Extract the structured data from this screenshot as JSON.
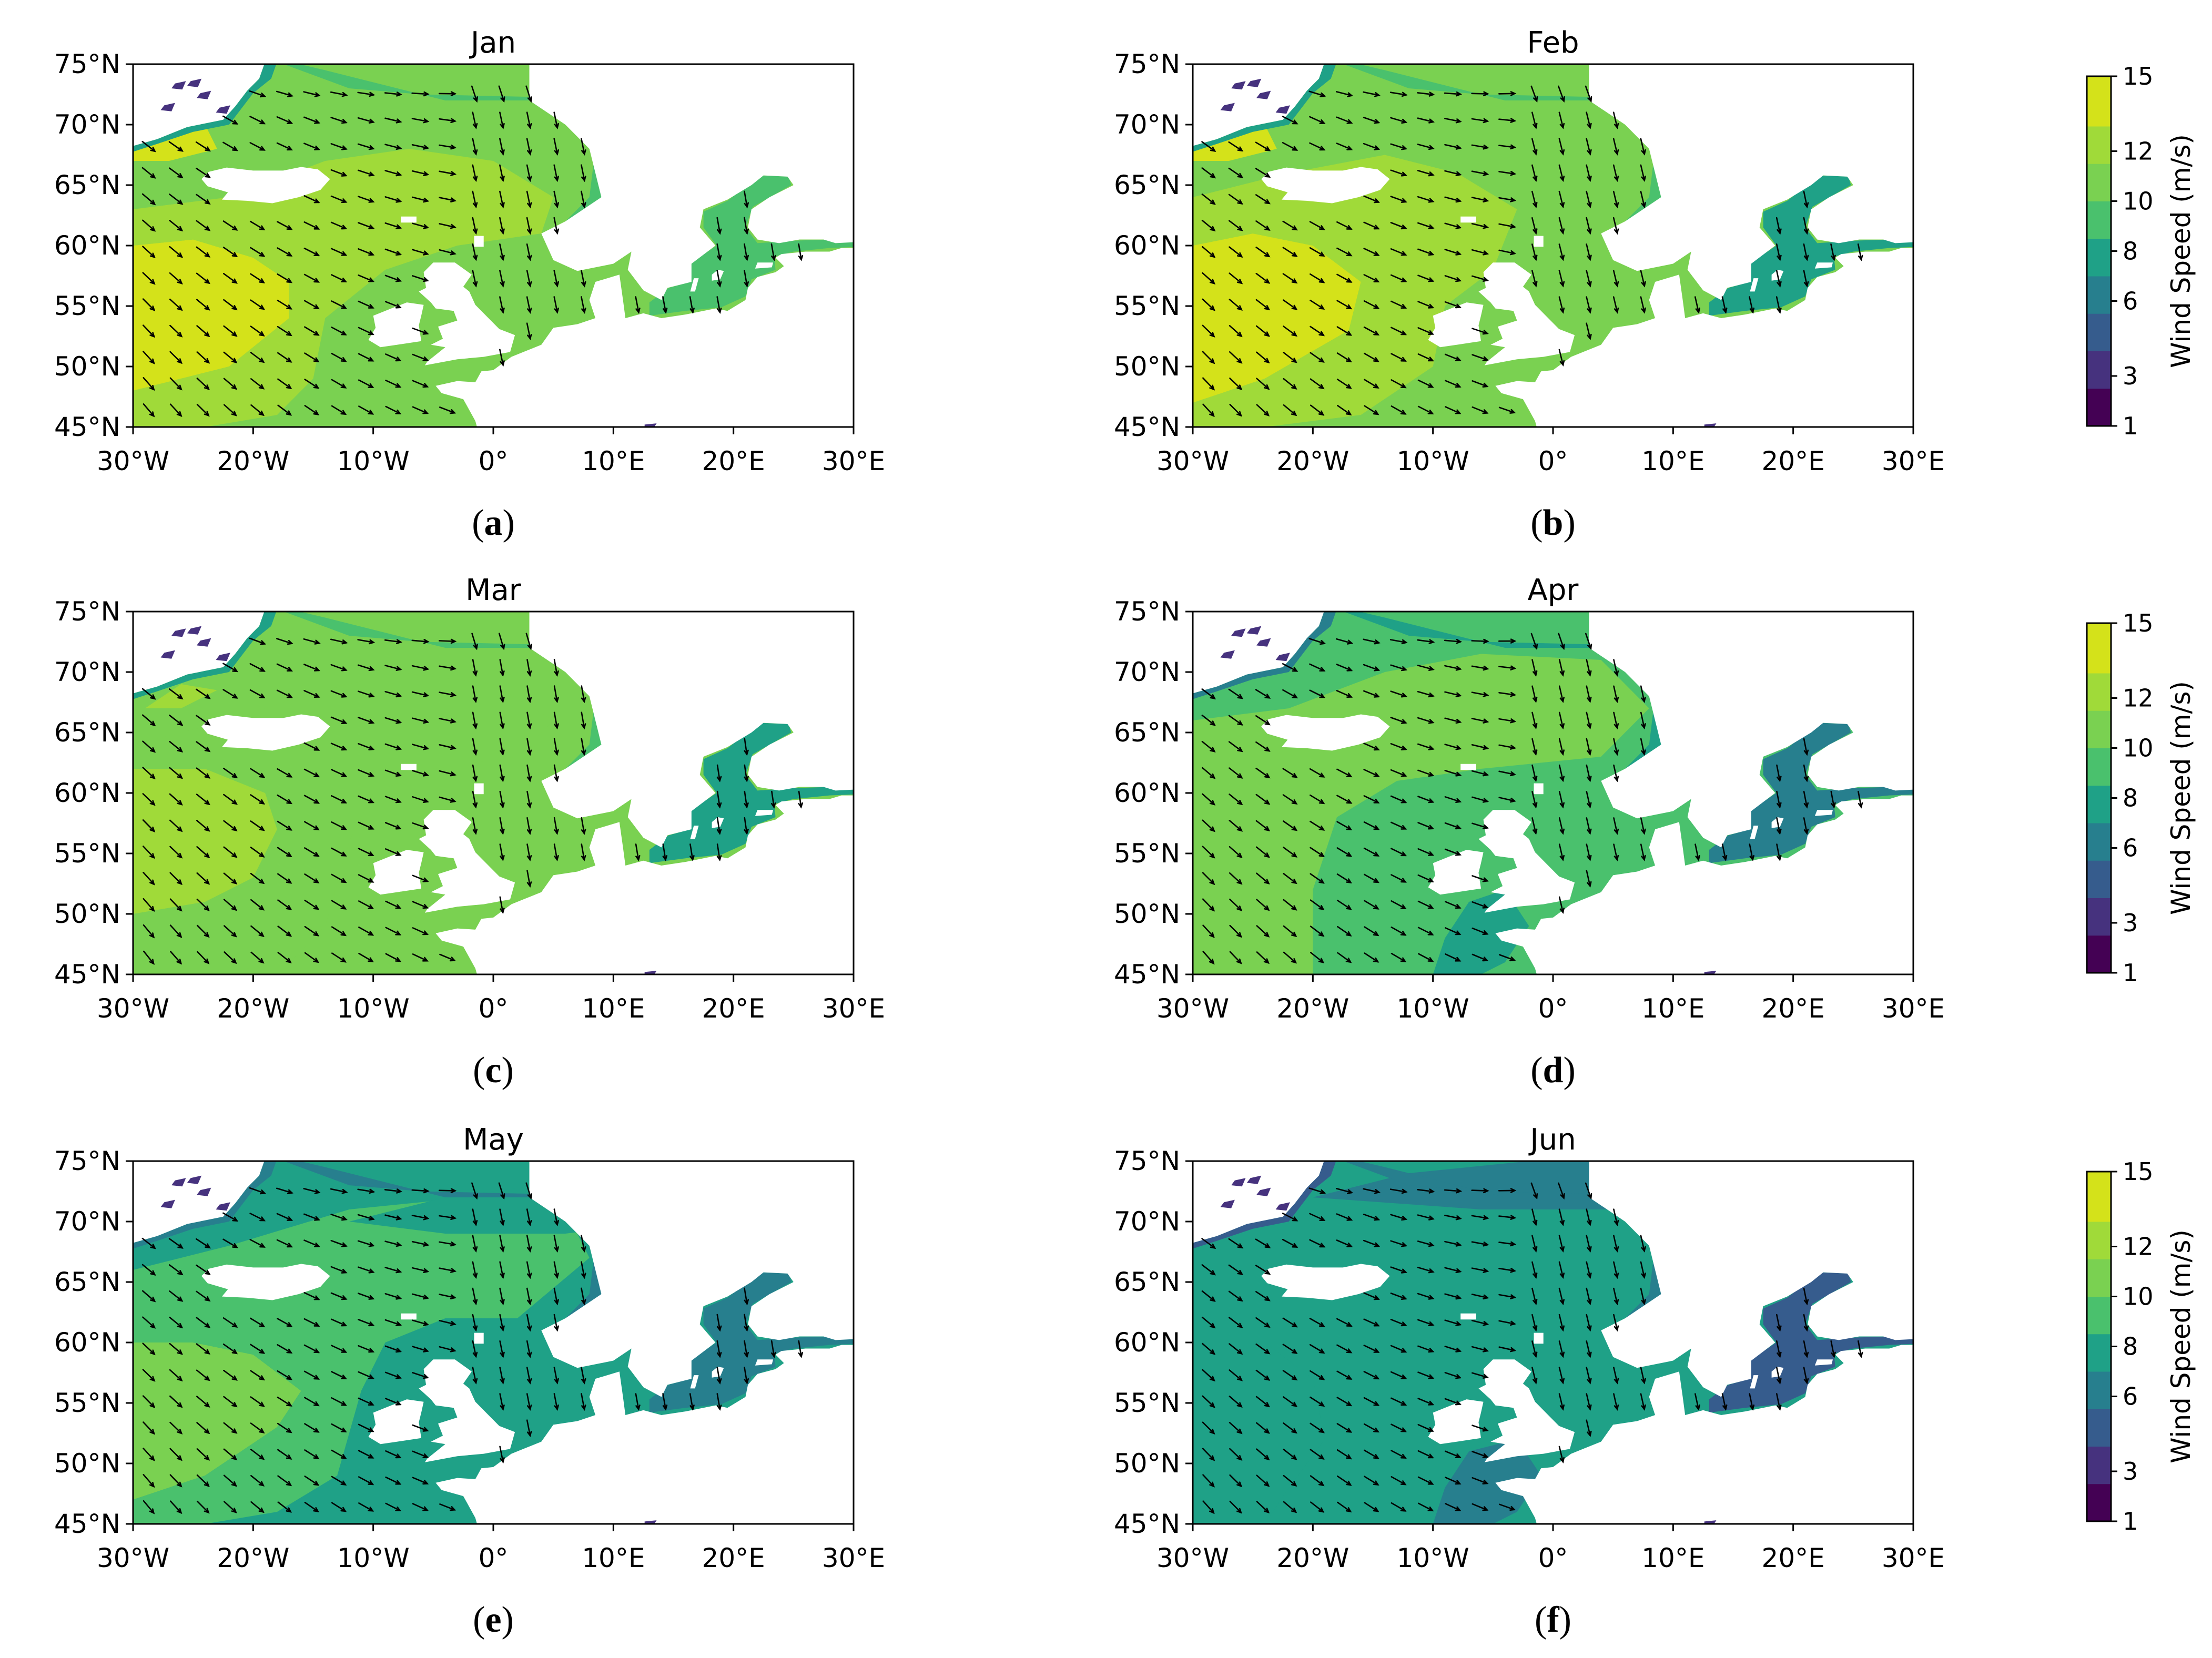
{
  "figure": {
    "panels": [
      {
        "id": "a",
        "caption_letter": "a",
        "title": "Jan",
        "zones": [
          {
            "level": 13.0,
            "poly": [
              [
                -30,
                48
              ],
              [
                -22,
                50
              ],
              [
                -17,
                54
              ],
              [
                -17,
                57
              ],
              [
                -20,
                59
              ],
              [
                -25,
                60.5
              ],
              [
                -30,
                60
              ]
            ]
          },
          {
            "level": 12.0,
            "poly": [
              [
                -30,
                48
              ],
              [
                -22,
                50
              ],
              [
                -17,
                54
              ],
              [
                -17,
                57
              ],
              [
                -20,
                59
              ],
              [
                -25,
                60.5
              ],
              [
                -30,
                60
              ],
              [
                -30,
                63
              ],
              [
                -22,
                64
              ],
              [
                -14,
                67
              ],
              [
                -7,
                68
              ],
              [
                0,
                67
              ],
              [
                5,
                64
              ],
              [
                4,
                61
              ],
              [
                -3,
                60
              ],
              [
                -9,
                58
              ],
              [
                -14,
                54
              ],
              [
                -15,
                49
              ],
              [
                -18,
                46
              ],
              [
                -24,
                45
              ],
              [
                -30,
                45
              ]
            ]
          },
          {
            "level": 13.0,
            "poly": [
              [
                -30,
                68
              ],
              [
                -27,
                69
              ],
              [
                -24,
                70
              ],
              [
                -23,
                68
              ],
              [
                -27,
                67
              ],
              [
                -30,
                67
              ]
            ]
          }
        ],
        "vec_shift": 0.0
      },
      {
        "id": "b",
        "caption_letter": "b",
        "title": "Feb",
        "zones": [
          {
            "level": 13.0,
            "poly": [
              [
                -30,
                47
              ],
              [
                -24,
                49
              ],
              [
                -17,
                53
              ],
              [
                -16,
                57
              ],
              [
                -20,
                60
              ],
              [
                -25,
                61
              ],
              [
                -30,
                60
              ]
            ]
          },
          {
            "level": 12.0,
            "poly": [
              [
                -30,
                47
              ],
              [
                -24,
                49
              ],
              [
                -17,
                53
              ],
              [
                -16,
                57
              ],
              [
                -20,
                60
              ],
              [
                -25,
                61
              ],
              [
                -30,
                60
              ],
              [
                -30,
                64
              ],
              [
                -22,
                66
              ],
              [
                -14,
                67.5
              ],
              [
                -8,
                66
              ],
              [
                -3,
                63
              ],
              [
                -5,
                58
              ],
              [
                -9,
                55
              ],
              [
                -10,
                50
              ],
              [
                -16,
                46
              ],
              [
                -24,
                45
              ],
              [
                -30,
                45
              ]
            ]
          },
          {
            "level": 11.0,
            "poly": [
              [
                -14,
                67.5
              ],
              [
                -2,
                70
              ],
              [
                8,
                71
              ],
              [
                18,
                72
              ],
              [
                24,
                71
              ],
              [
                20,
                69
              ],
              [
                10,
                67
              ],
              [
                0,
                65.5
              ],
              [
                -3,
                63
              ],
              [
                -8,
                66
              ]
            ]
          },
          {
            "level": 13.0,
            "poly": [
              [
                -30,
                68
              ],
              [
                -27,
                69
              ],
              [
                -24,
                70
              ],
              [
                -23,
                68
              ],
              [
                -27,
                67
              ],
              [
                -30,
                67
              ]
            ]
          }
        ],
        "vec_shift": 2.0
      },
      {
        "id": "c",
        "caption_letter": "c",
        "title": "Mar",
        "zones": [
          {
            "level": 11.8,
            "poly": [
              [
                -30,
                50
              ],
              [
                -24,
                51
              ],
              [
                -20,
                53
              ],
              [
                -18,
                57
              ],
              [
                -19,
                60
              ],
              [
                -24,
                62
              ],
              [
                -30,
                62
              ]
            ]
          },
          {
            "level": 11.0,
            "poly": [
              [
                -30,
                50
              ],
              [
                -24,
                51
              ],
              [
                -20,
                53
              ],
              [
                -18,
                57
              ],
              [
                -19,
                60
              ],
              [
                -24,
                62
              ],
              [
                -30,
                62
              ],
              [
                -30,
                64
              ],
              [
                -22,
                66
              ],
              [
                -16,
                68
              ],
              [
                -8,
                70
              ],
              [
                0,
                69
              ],
              [
                5,
                66
              ],
              [
                2,
                63
              ],
              [
                -5,
                62
              ],
              [
                -10,
                60
              ],
              [
                -12,
                56
              ],
              [
                -14,
                49
              ],
              [
                -17,
                46
              ],
              [
                -24,
                45
              ],
              [
                -30,
                45
              ]
            ]
          },
          {
            "level": 11.8,
            "poly": [
              [
                -29,
                67
              ],
              [
                -26,
                69
              ],
              [
                -23,
                68.5
              ],
              [
                -26,
                67
              ]
            ]
          }
        ],
        "vec_shift": -1.5
      },
      {
        "id": "d",
        "caption_letter": "d",
        "title": "Apr",
        "zones": [
          {
            "level": 10.2,
            "poly": [
              [
                -30,
                45
              ],
              [
                -30,
                66
              ],
              [
                -22,
                67
              ],
              [
                -14,
                70
              ],
              [
                -6,
                71.5
              ],
              [
                4,
                71
              ],
              [
                8,
                67
              ],
              [
                4,
                63
              ],
              [
                -6,
                62
              ],
              [
                -13,
                61
              ],
              [
                -18,
                58
              ],
              [
                -20,
                52
              ],
              [
                -20,
                45
              ]
            ]
          },
          {
            "level": 7.5,
            "poly": [
              [
                -10,
                45
              ],
              [
                -9,
                48
              ],
              [
                -7,
                51
              ],
              [
                -4,
                52
              ],
              [
                -2,
                49
              ],
              [
                -4,
                46
              ],
              [
                -6,
                45
              ]
            ]
          }
        ],
        "vec_shift": 1.0
      },
      {
        "id": "e",
        "caption_letter": "e",
        "title": "May",
        "zones": [
          {
            "level": 10.3,
            "poly": [
              [
                -30,
                47
              ],
              [
                -24,
                49
              ],
              [
                -18,
                53
              ],
              [
                -16,
                56
              ],
              [
                -20,
                59
              ],
              [
                -25,
                60
              ],
              [
                -30,
                60
              ]
            ]
          },
          {
            "level": 9.3,
            "poly": [
              [
                -30,
                47
              ],
              [
                -24,
                49
              ],
              [
                -18,
                53
              ],
              [
                -16,
                56
              ],
              [
                -20,
                59
              ],
              [
                -25,
                60
              ],
              [
                -30,
                60
              ],
              [
                -30,
                66
              ],
              [
                -22,
                68
              ],
              [
                -12,
                71
              ],
              [
                -2,
                72
              ],
              [
                6,
                71
              ],
              [
                8,
                67
              ],
              [
                2,
                62
              ],
              [
                -4,
                62
              ],
              [
                -9,
                60
              ],
              [
                -11,
                56
              ],
              [
                -13,
                49
              ],
              [
                -18,
                46
              ],
              [
                -24,
                45
              ],
              [
                -30,
                45
              ]
            ]
          },
          {
            "level": 7.8,
            "poly": [
              [
                -12,
                70
              ],
              [
                -4,
                72
              ],
              [
                4,
                73
              ],
              [
                12,
                73
              ],
              [
                20,
                72
              ],
              [
                14,
                70
              ],
              [
                6,
                69
              ],
              [
                -4,
                69
              ]
            ]
          }
        ],
        "vec_shift": -0.5
      },
      {
        "id": "f",
        "caption_letter": "f",
        "title": "Jun",
        "zones": [
          {
            "level": 8.3,
            "poly": [
              [
                -30,
                45
              ],
              [
                -30,
                60
              ],
              [
                -24,
                60
              ],
              [
                -20,
                57
              ],
              [
                -19,
                52
              ],
              [
                -22,
                48
              ],
              [
                -24,
                45
              ]
            ]
          },
          {
            "level": 6.8,
            "poly": [
              [
                -20,
                72
              ],
              [
                -12,
                74
              ],
              [
                -2,
                75
              ],
              [
                10,
                75
              ],
              [
                14,
                72
              ],
              [
                6,
                71
              ],
              [
                -6,
                71
              ]
            ]
          },
          {
            "level": 6.8,
            "poly": [
              [
                -10,
                45
              ],
              [
                -9,
                48
              ],
              [
                -7,
                51
              ],
              [
                -3,
                52
              ],
              [
                -1,
                49
              ],
              [
                -3,
                46
              ],
              [
                -5,
                45
              ]
            ]
          }
        ],
        "vec_shift": 1.5
      }
    ],
    "colorbar": {
      "label": "Wind Speed (m/s)",
      "tick_labels": [
        "1",
        "3",
        "6",
        "8",
        "10",
        "12",
        "15"
      ],
      "levels": [
        1,
        2.5,
        4,
        5.5,
        7,
        8.5,
        10,
        11.5,
        13,
        15
      ],
      "colors": [
        "#440154",
        "#46327e",
        "#365c8d",
        "#277f8e",
        "#1fa187",
        "#4ac16d",
        "#7ad151",
        "#a0da39",
        "#d4e21a"
      ]
    }
  },
  "chart_data": {
    "type": "heatmap",
    "series_kind": "filled contour map of monthly mean wind speed with wind direction vectors",
    "xlim": [
      -30,
      30
    ],
    "ylim": [
      45,
      75
    ],
    "x_ticks": [
      -30,
      -20,
      -10,
      0,
      10,
      20,
      30
    ],
    "y_ticks": [
      45,
      50,
      55,
      60,
      65,
      70,
      75
    ],
    "x_tick_labels": [
      "30°W",
      "20°W",
      "10°W",
      "0°",
      "10°E",
      "20°E",
      "30°E"
    ],
    "y_tick_labels": [
      "45°N",
      "50°N",
      "55°N",
      "60°N",
      "65°N",
      "70°N",
      "75°N"
    ],
    "months": [
      "Jan",
      "Feb",
      "Mar",
      "Apr",
      "May",
      "Jun"
    ],
    "approx_open_ocean_wind_speed_ms": {
      "Jan": {
        "southwest_max": 13,
        "central_atlantic": 12,
        "norwegian_sea": 11,
        "baltic": 9
      },
      "Feb": {
        "southwest_max": 13,
        "central_atlantic": 12,
        "norwegian_sea": 10.5,
        "baltic": 9
      },
      "Mar": {
        "southwest_max": 11.8,
        "central_atlantic": 11,
        "norwegian_sea": 10,
        "baltic": 9
      },
      "Apr": {
        "southwest_max": 10.2,
        "central_atlantic": 10,
        "norwegian_sea": 9,
        "baltic": 8.5
      },
      "May": {
        "southwest_max": 10.3,
        "central_atlantic": 9.3,
        "norwegian_sea": 8.5,
        "baltic": 8
      },
      "Jun": {
        "southwest_max": 8.3,
        "central_atlantic": 8,
        "norwegian_sea": 7,
        "baltic": 7.5
      }
    },
    "colorbar": {
      "label": "Wind Speed (m/s)",
      "ticks": [
        1,
        3,
        6,
        8,
        10,
        12,
        15
      ],
      "colormap": "viridis"
    }
  }
}
